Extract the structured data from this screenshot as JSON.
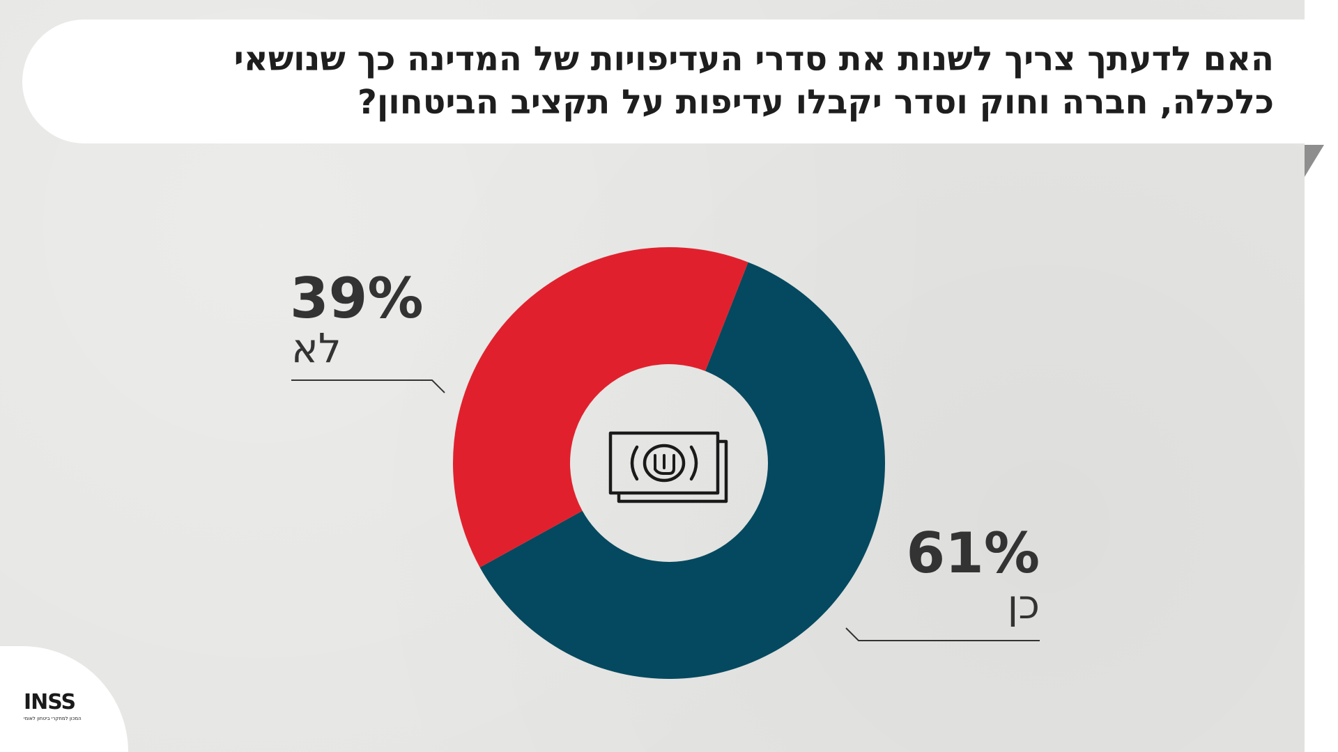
{
  "title": "האם לדעתך צריך לשנות את סדרי העדיפויות של המדינה כך שנושאי כלכלה, חברה וחוק וסדר יקבלו עדיפות על תקציב הביטחון?",
  "chart_data": {
    "type": "pie",
    "donut": true,
    "categories": [
      "כן",
      "לא"
    ],
    "values": [
      61,
      39
    ],
    "value_labels": [
      "61%",
      "39%"
    ],
    "colors": [
      "#04495f",
      "#e0212d"
    ],
    "center_icon": "shekel-banknote-icon"
  },
  "logo": {
    "name": "INSS",
    "subtitle": "המכון למחקרי ביטחון לאומי"
  }
}
